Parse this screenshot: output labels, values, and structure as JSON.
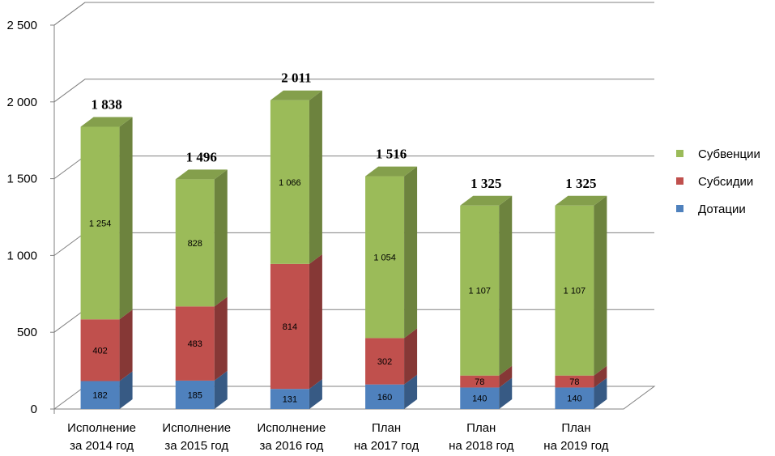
{
  "chart_data": {
    "type": "bar",
    "stacked": true,
    "three_d": true,
    "categories": [
      [
        "Исполнение",
        "за 2014 год"
      ],
      [
        "Исполнение",
        "за 2015 год"
      ],
      [
        "Исполнение",
        "за 2016 год"
      ],
      [
        "План",
        "на 2017 год"
      ],
      [
        "План",
        "на 2018 год"
      ],
      [
        "План",
        "на 2019 год"
      ]
    ],
    "series": [
      {
        "name": "Дотации",
        "color": "#4f81bd",
        "values": [
          182,
          185,
          131,
          160,
          140,
          140
        ],
        "labels": [
          "182",
          "185",
          "131",
          "160",
          "140",
          "140"
        ]
      },
      {
        "name": "Субсидии",
        "color": "#c0504d",
        "values": [
          402,
          483,
          814,
          302,
          78,
          78
        ],
        "labels": [
          "402",
          "483",
          "814",
          "302",
          "78",
          "78"
        ]
      },
      {
        "name": "Субвенции",
        "color": "#9bbb59",
        "values": [
          1254,
          828,
          1066,
          1054,
          1107,
          1107
        ],
        "labels": [
          "1 254",
          "828",
          "1 066",
          "1 054",
          "1 107",
          "1 107"
        ]
      }
    ],
    "totals": [
      "1 838",
      "1 496",
      "2 011",
      "1 516",
      "1 325",
      "1 325"
    ],
    "ylim": [
      0,
      2500
    ],
    "yticks": [
      0,
      500,
      1000,
      1500,
      2000,
      2500
    ],
    "ytick_labels": [
      "0",
      "500",
      "1 000",
      "1 500",
      "2 000",
      "2 500"
    ],
    "grid": true,
    "legend_position": "right",
    "legend_order": [
      "Субвенции",
      "Субсидии",
      "Дотации"
    ]
  }
}
